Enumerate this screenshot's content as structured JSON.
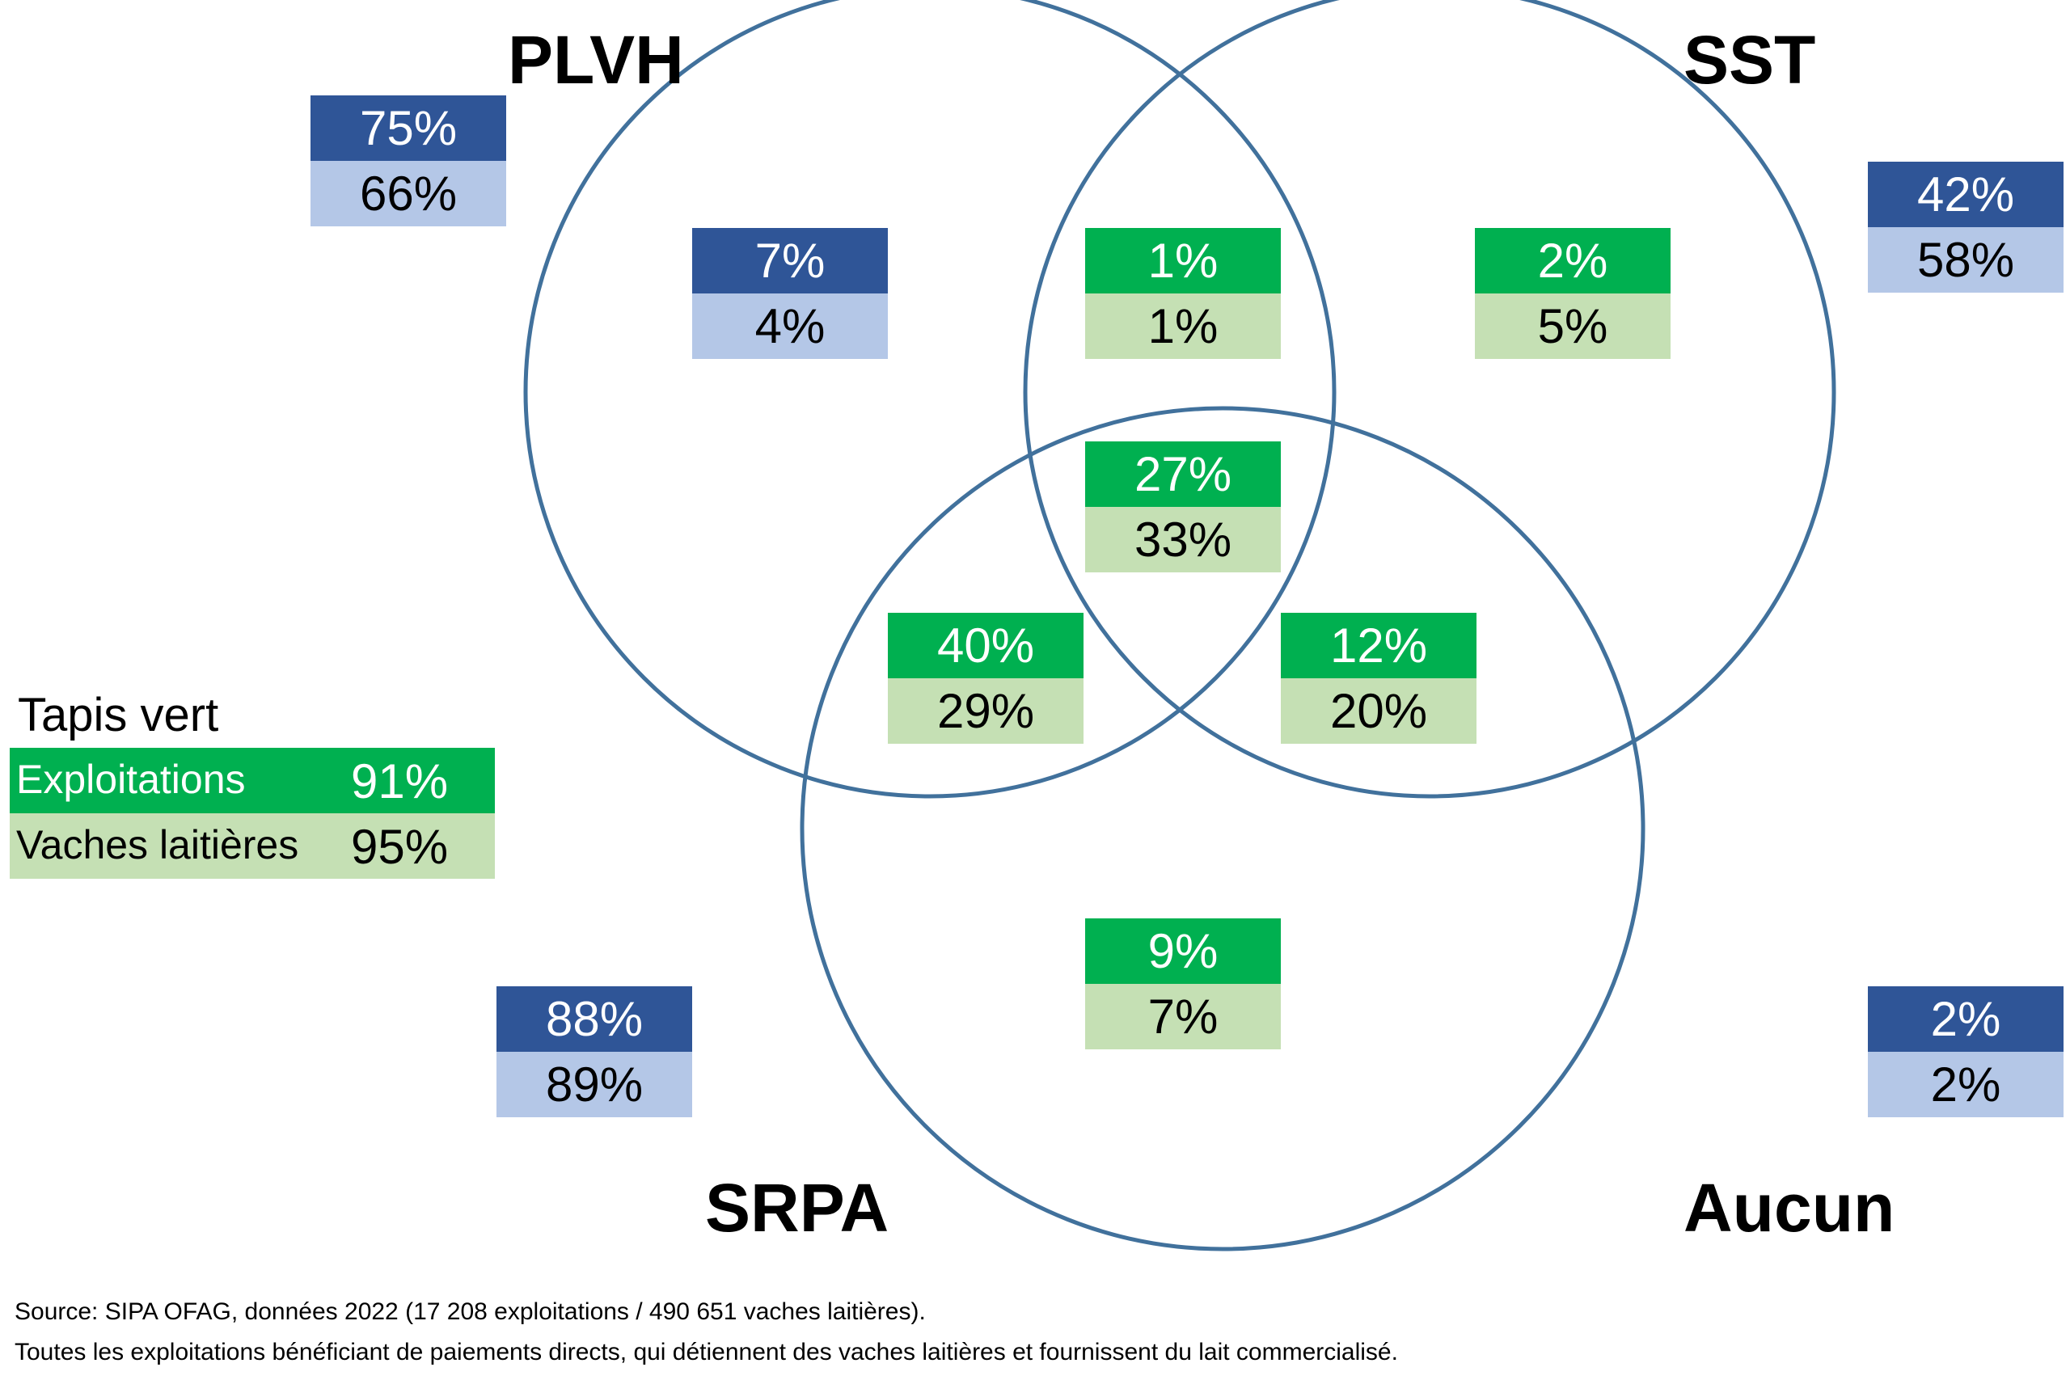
{
  "circles": {
    "plvh": "PLVH",
    "sst": "SST",
    "srpa": "SRPA",
    "aucun": "Aucun"
  },
  "colors": {
    "circle_stroke": "#41719C",
    "blue_dark": "#2F5597",
    "blue_light": "#B4C7E7",
    "green_dark": "#00B050",
    "green_light": "#C5E0B4"
  },
  "totals": {
    "plvh": {
      "exploitations": "75%",
      "vaches": "66%"
    },
    "sst": {
      "exploitations": "42%",
      "vaches": "58%"
    },
    "srpa": {
      "exploitations": "88%",
      "vaches": "89%"
    },
    "aucun": {
      "exploitations": "2%",
      "vaches": "2%"
    }
  },
  "regions": {
    "plvh_only": {
      "exploitations": "7%",
      "vaches": "4%"
    },
    "plvh_sst": {
      "exploitations": "1%",
      "vaches": "1%"
    },
    "sst_only": {
      "exploitations": "2%",
      "vaches": "5%"
    },
    "all_three": {
      "exploitations": "27%",
      "vaches": "33%"
    },
    "plvh_srpa": {
      "exploitations": "40%",
      "vaches": "29%"
    },
    "sst_srpa": {
      "exploitations": "12%",
      "vaches": "20%"
    },
    "srpa_only": {
      "exploitations": "9%",
      "vaches": "7%"
    }
  },
  "legend": {
    "title": "Tapis vert",
    "rows": [
      {
        "label": "Exploitations",
        "value": "91%"
      },
      {
        "label": "Vaches laitières",
        "value": "95%"
      }
    ]
  },
  "footnote": {
    "source": "Source: SIPA OFAG, données 2022 (17 208 exploitations / 490 651 vaches laitières).",
    "note": "Toutes les exploitations bénéficiant de paiements directs, qui détiennent des vaches laitières et fournissent du lait commercialisé."
  }
}
